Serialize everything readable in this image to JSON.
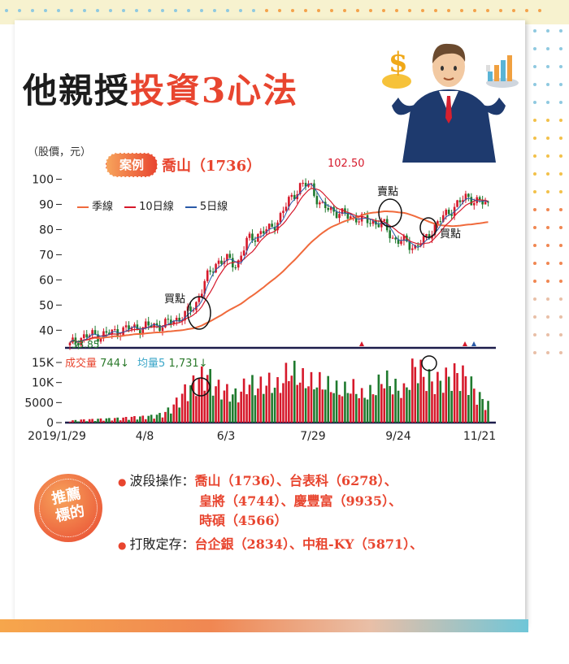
{
  "title": {
    "part1": "他親授",
    "part2": "投資3心法"
  },
  "chart_data": {
    "type": "candlestick",
    "unit_label": "（股價，元）",
    "case_label": "案例",
    "stock": "喬山（1736）",
    "legend": [
      {
        "label": "季線",
        "color": "#f06a3c"
      },
      {
        "label": "10日線",
        "color": "#d6192b"
      },
      {
        "label": "5日線",
        "color": "#2a5aa8"
      }
    ],
    "price_yticks": [
      "100",
      "90",
      "80",
      "70",
      "60",
      "50",
      "40"
    ],
    "ylim": [
      33,
      105
    ],
    "high_label": "102.50",
    "low_label": "33.85",
    "annotations": [
      "買點",
      "賣點",
      "買點"
    ],
    "volume_header": {
      "label": "成交量",
      "val": "744↓",
      "avg_label": "均量5",
      "avg_val": "1,731↓"
    },
    "volume_yticks": [
      "15K",
      "10K",
      "5000",
      "0"
    ],
    "xticks": [
      "2019/1/29",
      "4/8",
      "6/3",
      "7/29",
      "9/24",
      "11/21"
    ],
    "close_approx": [
      34,
      37,
      38,
      38,
      39,
      40,
      41,
      41,
      42,
      42,
      44,
      46,
      50,
      60,
      67,
      68,
      66,
      76,
      78,
      80,
      84,
      92,
      97,
      98,
      89,
      88,
      86,
      85,
      84,
      83,
      82,
      76,
      75,
      73,
      76,
      82,
      86,
      90,
      93,
      91,
      90
    ],
    "volume_approx": [
      400,
      600,
      700,
      800,
      900,
      1000,
      1200,
      1300,
      1500,
      2000,
      4000,
      7000,
      9000,
      11000,
      8000,
      7000,
      6000,
      9000,
      8000,
      9000,
      8000,
      12000,
      10000,
      9000,
      9000,
      8000,
      7000,
      8000,
      6000,
      7000,
      10000,
      8000,
      7000,
      13000,
      10000,
      9000,
      10000,
      11000,
      10000,
      6000,
      4000
    ]
  },
  "recommend": {
    "tag": [
      "推薦",
      "標的"
    ],
    "items": [
      {
        "label": "波段操作：",
        "lines": [
          "喬山（1736）、台表科（6278）、",
          "皇將（4744）、慶豐富（9935）、",
          "時碩（4566）"
        ]
      },
      {
        "label": "打敗定存：",
        "lines": [
          "台企銀（2834）、中租-KY（5871）、"
        ]
      }
    ]
  }
}
